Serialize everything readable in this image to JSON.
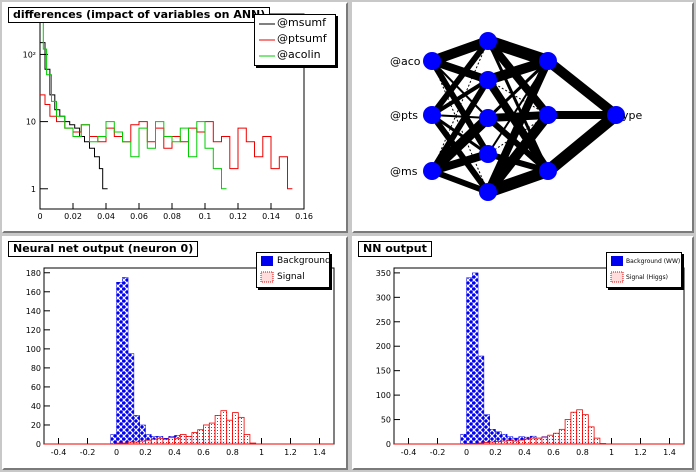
{
  "pads": {
    "differences": {
      "title": "differences (impact of variables on ANN)"
    },
    "network": {
      "inputs": [
        "@acolin",
        "@ptsumf",
        "@msumf"
      ],
      "inputs_visible": [
        "@aco",
        "@pts",
        "@ms"
      ],
      "output": "type",
      "output_visible": "ype",
      "layers": [
        3,
        5,
        3,
        1
      ]
    },
    "output0": {
      "title": "Neural net output (neuron 0)"
    },
    "nnout": {
      "title": "NN output"
    }
  },
  "colors": {
    "background_fill": "#0000ee",
    "signal": "#ee0000",
    "green": "#00cc00",
    "node": "#0000ff"
  },
  "chart_data": [
    {
      "type": "line",
      "title": "differences (impact of variables on ANN)",
      "log_y": true,
      "xlim": [
        0,
        0.16
      ],
      "x_ticks": [
        "0",
        "0.02",
        "0.04",
        "0.06",
        "0.08",
        "0.1",
        "0.12",
        "0.14",
        "0.16"
      ],
      "y_ticks": [
        "1",
        "10",
        "10²"
      ],
      "legend": [
        "@msumf",
        "@ptsumf",
        "@acolin"
      ],
      "series": [
        {
          "name": "@msumf",
          "color": "#000000",
          "x": [
            0.0,
            0.003,
            0.006,
            0.009,
            0.012,
            0.015,
            0.018,
            0.021,
            0.024,
            0.027,
            0.03,
            0.033,
            0.036,
            0.038
          ],
          "values": [
            150,
            60,
            25,
            15,
            12,
            10,
            9,
            8,
            6,
            5,
            4,
            3,
            2,
            1
          ]
        },
        {
          "name": "@ptsumf",
          "color": "#ee0000",
          "x": [
            0.0,
            0.003,
            0.006,
            0.01,
            0.015,
            0.02,
            0.025,
            0.03,
            0.035,
            0.04,
            0.045,
            0.05,
            0.055,
            0.06,
            0.065,
            0.07,
            0.075,
            0.08,
            0.085,
            0.09,
            0.095,
            0.1,
            0.105,
            0.11,
            0.115,
            0.12,
            0.125,
            0.13,
            0.135,
            0.14,
            0.145,
            0.15
          ],
          "values": [
            25,
            18,
            12,
            10,
            8,
            7,
            9,
            6,
            5,
            8,
            6,
            5,
            9,
            10,
            5,
            8,
            4,
            6,
            5,
            8,
            7,
            10,
            5,
            6,
            2,
            8,
            5,
            3,
            6,
            2,
            3,
            1
          ]
        },
        {
          "name": "@acolin",
          "color": "#00cc00",
          "x": [
            0.0,
            0.002,
            0.004,
            0.007,
            0.01,
            0.015,
            0.02,
            0.025,
            0.03,
            0.035,
            0.04,
            0.045,
            0.05,
            0.055,
            0.06,
            0.065,
            0.07,
            0.075,
            0.08,
            0.085,
            0.09,
            0.095,
            0.1,
            0.105,
            0.11
          ],
          "values": [
            300,
            120,
            50,
            20,
            12,
            8,
            6,
            9,
            5,
            6,
            10,
            7,
            5,
            3,
            8,
            4,
            10,
            6,
            5,
            8,
            3,
            10,
            4,
            2,
            1
          ]
        }
      ]
    },
    {
      "type": "bar",
      "title": "Neural net output (neuron 0)",
      "xlim": [
        -0.5,
        1.5
      ],
      "ylim": [
        0,
        185
      ],
      "x_ticks": [
        "-0.4",
        "-0.2",
        "0",
        "0.2",
        "0.4",
        "0.6",
        "0.8",
        "1",
        "1.2",
        "1.4"
      ],
      "y_ticks": [
        "0",
        "20",
        "40",
        "60",
        "80",
        "100",
        "120",
        "140",
        "160",
        "180"
      ],
      "legend": [
        "Background",
        "Signal"
      ],
      "bin_width": 0.04,
      "series": [
        {
          "name": "Background",
          "x": [
            -0.02,
            0.02,
            0.06,
            0.1,
            0.14,
            0.18,
            0.22,
            0.26,
            0.3,
            0.34,
            0.38,
            0.42,
            0.46,
            0.5,
            0.54,
            0.58,
            0.62,
            0.66,
            0.7,
            0.74,
            0.78,
            0.82,
            0.86,
            0.9,
            0.94
          ],
          "values": [
            10,
            170,
            175,
            95,
            30,
            20,
            10,
            8,
            8,
            6,
            8,
            9,
            8,
            6,
            7,
            5,
            4,
            3,
            3,
            3,
            2,
            2,
            2,
            1,
            0
          ]
        },
        {
          "name": "Signal",
          "x": [
            0.02,
            0.06,
            0.1,
            0.14,
            0.18,
            0.22,
            0.26,
            0.3,
            0.34,
            0.38,
            0.42,
            0.46,
            0.5,
            0.54,
            0.58,
            0.62,
            0.66,
            0.7,
            0.74,
            0.78,
            0.82,
            0.86,
            0.9,
            0.94
          ],
          "values": [
            1,
            1,
            2,
            2,
            3,
            4,
            5,
            6,
            5,
            7,
            6,
            10,
            8,
            12,
            15,
            20,
            22,
            30,
            35,
            25,
            33,
            28,
            10,
            1
          ]
        }
      ]
    },
    {
      "type": "bar",
      "title": "NN output",
      "xlim": [
        -0.5,
        1.5
      ],
      "ylim": [
        0,
        360
      ],
      "x_ticks": [
        "-0.4",
        "-0.2",
        "0",
        "0.2",
        "0.4",
        "0.6",
        "0.8",
        "1",
        "1.2",
        "1.4"
      ],
      "y_ticks": [
        "0",
        "50",
        "100",
        "150",
        "200",
        "250",
        "300",
        "350"
      ],
      "legend": [
        "Background (WW)",
        "Signal (Higgs)"
      ],
      "bin_width": 0.04,
      "series": [
        {
          "name": "Background (WW)",
          "x": [
            -0.02,
            0.02,
            0.06,
            0.1,
            0.14,
            0.18,
            0.22,
            0.26,
            0.3,
            0.34,
            0.38,
            0.42,
            0.46,
            0.5,
            0.54,
            0.58,
            0.62,
            0.66,
            0.7,
            0.74,
            0.78,
            0.82,
            0.86,
            0.9,
            0.94
          ],
          "values": [
            20,
            340,
            350,
            180,
            60,
            30,
            25,
            20,
            15,
            12,
            15,
            14,
            16,
            12,
            15,
            12,
            10,
            8,
            10,
            10,
            8,
            6,
            4,
            2,
            0
          ]
        },
        {
          "name": "Signal (Higgs)",
          "x": [
            0.02,
            0.06,
            0.1,
            0.14,
            0.18,
            0.22,
            0.26,
            0.3,
            0.34,
            0.38,
            0.42,
            0.46,
            0.5,
            0.54,
            0.58,
            0.62,
            0.66,
            0.7,
            0.74,
            0.78,
            0.82,
            0.86,
            0.9,
            0.94
          ],
          "values": [
            1,
            1,
            2,
            3,
            4,
            5,
            6,
            7,
            6,
            8,
            10,
            12,
            12,
            14,
            18,
            22,
            30,
            50,
            65,
            70,
            60,
            35,
            12,
            1
          ]
        }
      ]
    }
  ]
}
